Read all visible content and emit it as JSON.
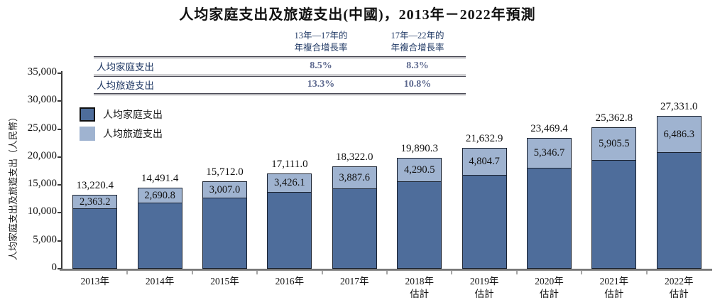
{
  "title": "人均家庭支出及旅遊支出(中國)，2013年－2022年預測",
  "cagr_table": {
    "col_headers": [
      "13年—17年的\n年複合增長率",
      "17年—22年的\n年複合增長率"
    ],
    "rows": [
      {
        "label": "人均家庭支出",
        "values": [
          "8.5%",
          "8.3%"
        ]
      },
      {
        "label": "人均旅遊支出",
        "values": [
          "13.3%",
          "10.8%"
        ]
      }
    ]
  },
  "legend": {
    "items": [
      {
        "label": "人均家庭支出",
        "color": "#4e6d9b",
        "border": "#111111"
      },
      {
        "label": "人均旅遊支出",
        "color": "#9fb3d0",
        "border": "#9fb3d0"
      }
    ]
  },
  "chart_data": {
    "type": "bar",
    "stacked": true,
    "title": "人均家庭支出及旅遊支出(中國)，2013年－2022年預測",
    "xlabel": "",
    "ylabel": "人均家庭支出及旅遊支出（人民幣）",
    "ylim": [
      0,
      35000
    ],
    "ytick_interval": 5000,
    "ytick_labels": [
      "0",
      "5,000",
      "10,000",
      "15,000",
      "20,000",
      "25,000",
      "30,000",
      "35,000"
    ],
    "grid": false,
    "legend_position": "upper-left",
    "categories": [
      "2013年",
      "2014年",
      "2015年",
      "2016年",
      "2017年",
      "2018年",
      "2019年",
      "2020年",
      "2021年",
      "2022年"
    ],
    "estimate_sublabel": "估計",
    "estimate_from_index": 5,
    "series": [
      {
        "name": "人均家庭支出",
        "color": "#4e6d9b",
        "values": [
          10857.2,
          11800.6,
          12705.0,
          13684.9,
          14434.4,
          15599.8,
          16828.2,
          18122.7,
          19457.3,
          20844.7
        ]
      },
      {
        "name": "人均旅遊支出",
        "color": "#9fb3d0",
        "values": [
          2363.2,
          2690.8,
          3007.0,
          3426.1,
          3887.6,
          4290.5,
          4804.7,
          5346.7,
          5905.5,
          6486.3
        ],
        "labels": [
          "2,363.2",
          "2,690.8",
          "3,007.0",
          "3,426.1",
          "3,887.6",
          "4,290.5",
          "4,804.7",
          "5,346.7",
          "5,905.5",
          "6,486.3"
        ]
      }
    ],
    "totals": [
      13220.4,
      14491.4,
      15712.0,
      17111.0,
      18322.0,
      19890.3,
      21632.9,
      23469.4,
      25362.8,
      27331.0
    ],
    "total_labels": [
      "13,220.4",
      "14,491.4",
      "15,712.0",
      "17,111.0",
      "18,322.0",
      "19,890.3",
      "21,632.9",
      "23,469.4",
      "25,362.8",
      "27,331.0"
    ]
  },
  "colors": {
    "household": "#4e6d9b",
    "travel": "#9fb3d0",
    "bar_border": "#1a2230",
    "table_text": "#1f3864",
    "table_value": "#5c688e",
    "axis": "#3a3a3a",
    "baseline": "#8f8f8f"
  }
}
